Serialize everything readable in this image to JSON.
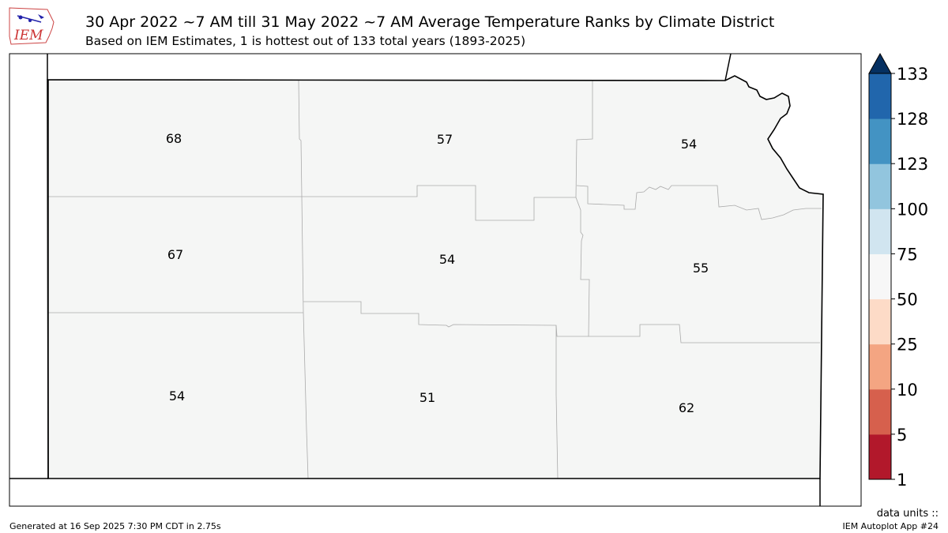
{
  "header": {
    "title": "30 Apr 2022 ~7 AM till 31 May 2022 ~7 AM Average Temperature Ranks by Climate District",
    "subtitle": "Based on IEM Estimates, 1 is hottest out of 133 total years (1893-2025)",
    "logo_text": "IEM"
  },
  "districts": [
    {
      "id": "northwest",
      "rank": "68"
    },
    {
      "id": "north-central",
      "rank": "57"
    },
    {
      "id": "northeast",
      "rank": "54"
    },
    {
      "id": "west-central",
      "rank": "67"
    },
    {
      "id": "central",
      "rank": "54"
    },
    {
      "id": "east-central",
      "rank": "55"
    },
    {
      "id": "southwest",
      "rank": "54"
    },
    {
      "id": "south-central",
      "rank": "51"
    },
    {
      "id": "southeast",
      "rank": "62"
    }
  ],
  "colorbar": {
    "ticks": [
      "1",
      "5",
      "10",
      "25",
      "50",
      "75",
      "100",
      "123",
      "128",
      "133"
    ],
    "colors": [
      "#b2182b",
      "#d6604d",
      "#f4a582",
      "#fddbc7",
      "#f7f7f7",
      "#d1e5f0",
      "#92c5de",
      "#4393c3",
      "#2166ac"
    ],
    "extend_color": "#053061",
    "fill_color": "#f5f6f5"
  },
  "footer": {
    "generated": "Generated at 16 Sep 2025 7:30 PM CDT in 2.75s",
    "app": "IEM Autoplot App #24",
    "units": "data units ::"
  }
}
